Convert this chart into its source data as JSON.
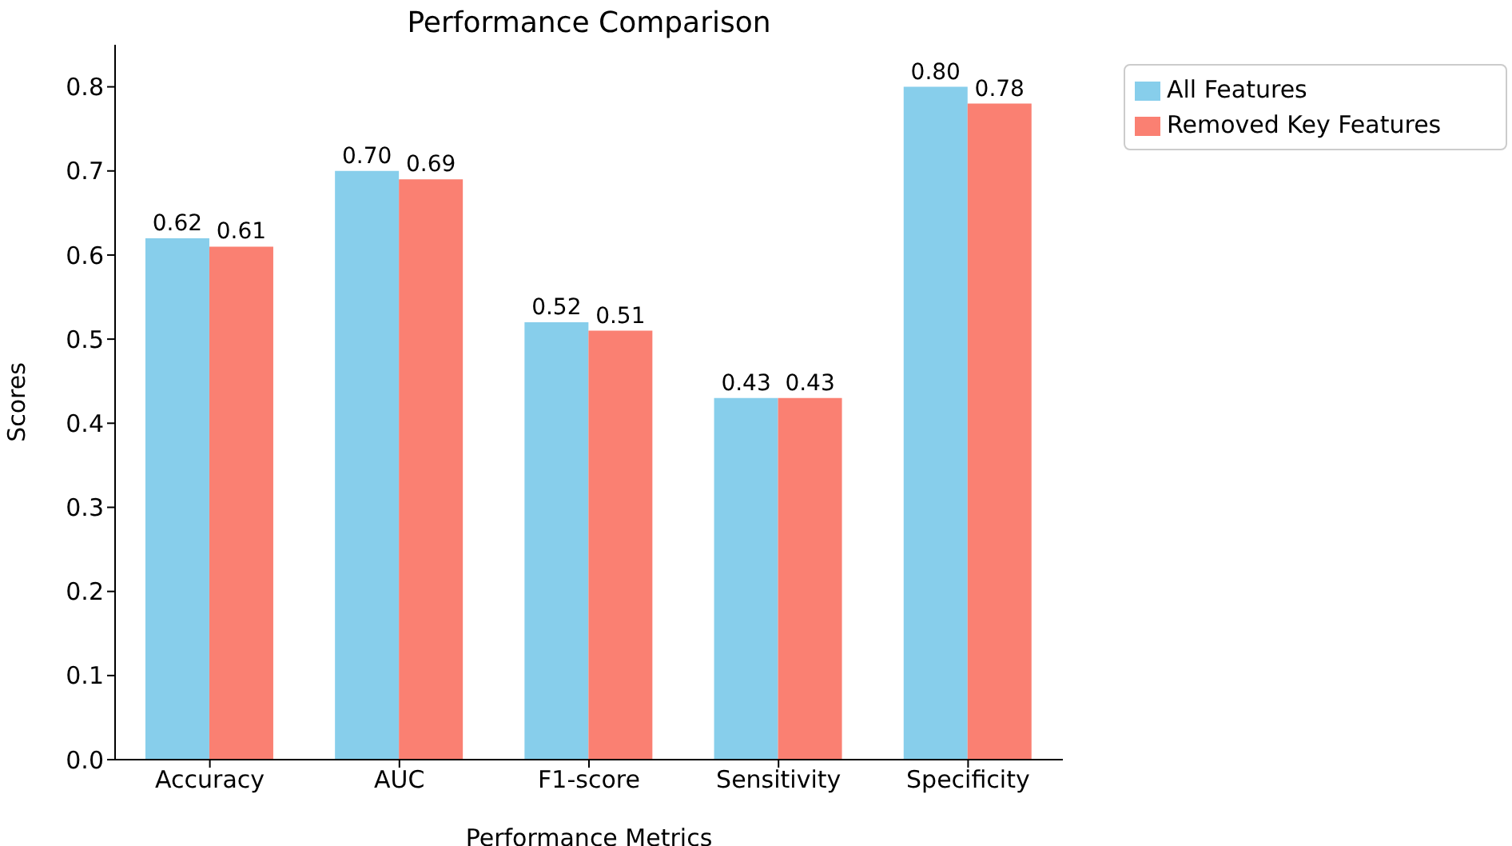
{
  "chart_data": {
    "type": "bar",
    "title": "Performance Comparison",
    "xlabel": "Performance Metrics",
    "ylabel": "Scores",
    "categories": [
      "Accuracy",
      "AUC",
      "F1-score",
      "Sensitivity",
      "Specificity"
    ],
    "series": [
      {
        "name": "All Features",
        "color": "#87ceeb",
        "values": [
          0.62,
          0.7,
          0.52,
          0.43,
          0.8
        ],
        "value_labels": [
          "0.62",
          "0.70",
          "0.52",
          "0.43",
          "0.80"
        ]
      },
      {
        "name": "Removed Key Features",
        "color": "#fa8072",
        "values": [
          0.61,
          0.69,
          0.51,
          0.43,
          0.78
        ],
        "value_labels": [
          "0.61",
          "0.69",
          "0.51",
          "0.43",
          "0.78"
        ]
      }
    ],
    "ylim": [
      0,
      0.85
    ],
    "yticks": [
      {
        "value": 0,
        "label": "0.0"
      },
      0.1,
      0.2,
      0.3,
      0.4,
      0.5,
      0.6,
      0.7,
      0.8
    ],
    "legend": "top right",
    "grid": false
  }
}
